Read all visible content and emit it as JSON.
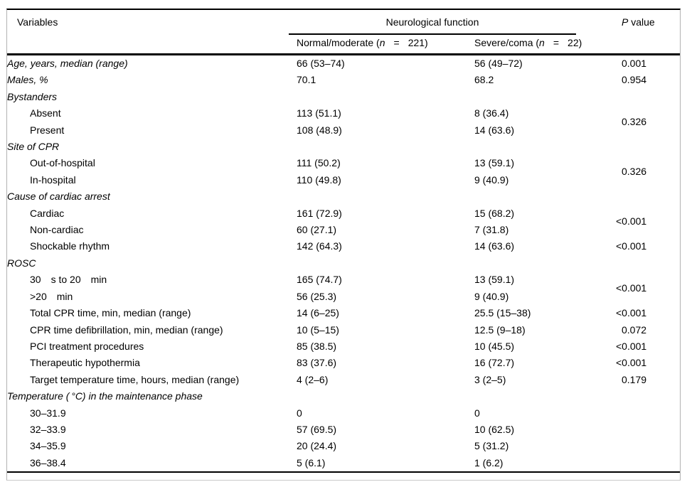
{
  "header": {
    "variables": "Variables",
    "group": "Neurological function",
    "p_italic": "P",
    "p_rest": " value",
    "sub1": {
      "prefix": "Normal/moderate (",
      "n": "n",
      "eq": "=",
      "count": "221)"
    },
    "sub2": {
      "prefix": "Severe/coma (",
      "n": "n",
      "eq": "=",
      "count": "22)"
    }
  },
  "colors": {
    "text": "#000000",
    "rule": "#000000",
    "frame_border": "#b3b3b3",
    "background": "#ffffff"
  },
  "rows": [
    {
      "label": "Age, years, median (range)",
      "italic": true,
      "indent": false,
      "v1": "66 (53–74)",
      "v2": "56 (49–72)",
      "p": "0.001",
      "pspan": 1
    },
    {
      "label": "Males, %",
      "italic": true,
      "indent": false,
      "v1": "70.1",
      "v2": "68.2",
      "p": "0.954",
      "pspan": 1
    },
    {
      "label": "Bystanders",
      "italic": true,
      "indent": false,
      "v1": "",
      "v2": "",
      "p": "",
      "pspan": 1
    },
    {
      "label": "Absent",
      "italic": false,
      "indent": true,
      "v1": "113 (51.1)",
      "v2": "8 (36.4)",
      "p": "0.326",
      "pspan": 2
    },
    {
      "label": "Present",
      "italic": false,
      "indent": true,
      "v1": "108 (48.9)",
      "v2": "14 (63.6)",
      "p": null,
      "pspan": 0
    },
    {
      "label": "Site of CPR",
      "italic": true,
      "indent": false,
      "v1": "",
      "v2": "",
      "p": "",
      "pspan": 1
    },
    {
      "label": "Out-of-hospital",
      "italic": false,
      "indent": true,
      "v1": "111 (50.2)",
      "v2": "13 (59.1)",
      "p": "0.326",
      "pspan": 2
    },
    {
      "label": "In-hospital",
      "italic": false,
      "indent": true,
      "v1": "110 (49.8)",
      "v2": "9 (40.9)",
      "p": null,
      "pspan": 0
    },
    {
      "label": "Cause of cardiac arrest",
      "italic": true,
      "indent": false,
      "v1": "",
      "v2": "",
      "p": "",
      "pspan": 1
    },
    {
      "label": "Cardiac",
      "italic": false,
      "indent": true,
      "v1": "161 (72.9)",
      "v2": "15 (68.2)",
      "p": "<0.001",
      "pspan": 2
    },
    {
      "label": "Non-cardiac",
      "italic": false,
      "indent": true,
      "v1": "60 (27.1)",
      "v2": "7 (31.8)",
      "p": null,
      "pspan": 0
    },
    {
      "label": "Shockable rhythm",
      "italic": false,
      "indent": true,
      "v1": "142 (64.3)",
      "v2": "14 (63.6)",
      "p": "<0.001",
      "pspan": 1
    },
    {
      "label": "ROSC",
      "italic": true,
      "indent": false,
      "v1": "",
      "v2": "",
      "p": "",
      "pspan": 1
    },
    {
      "label": "30 s to 20 min",
      "italic": false,
      "indent": true,
      "v1": "165 (74.7)",
      "v2": "13 (59.1)",
      "p": "<0.001",
      "pspan": 2
    },
    {
      "label": ">20 min",
      "italic": false,
      "indent": true,
      "v1": "56 (25.3)",
      "v2": "9 (40.9)",
      "p": null,
      "pspan": 0
    },
    {
      "label": "Total CPR time, min, median (range)",
      "italic": false,
      "indent": true,
      "v1": "14 (6–25)",
      "v2": "25.5 (15–38)",
      "p": "<0.001",
      "pspan": 1
    },
    {
      "label": "CPR time defibrillation, min, median (range)",
      "italic": false,
      "indent": true,
      "v1": "10 (5–15)",
      "v2": "12.5 (9–18)",
      "p": "0.072",
      "pspan": 1
    },
    {
      "label": "PCI treatment procedures",
      "italic": false,
      "indent": true,
      "v1": "85 (38.5)",
      "v2": "10 (45.5)",
      "p": "<0.001",
      "pspan": 1
    },
    {
      "label": "Therapeutic hypothermia",
      "italic": false,
      "indent": true,
      "v1": "83 (37.6)",
      "v2": "16 (72.7)",
      "p": "<0.001",
      "pspan": 1
    },
    {
      "label": "Target temperature time, hours, median (range)",
      "italic": false,
      "indent": true,
      "v1": "4 (2–6)",
      "v2": "3 (2–5)",
      "p": "0.179",
      "pspan": 1
    },
    {
      "label": "Temperature ( °C) in the maintenance phase",
      "italic": true,
      "indent": false,
      "v1": "",
      "v2": "",
      "p": "",
      "pspan": 1
    },
    {
      "label": "30–31.9",
      "italic": false,
      "indent": true,
      "v1": "0",
      "v2": "0",
      "p": "",
      "pspan": 1
    },
    {
      "label": "32–33.9",
      "italic": false,
      "indent": true,
      "v1": "57 (69.5)",
      "v2": "10 (62.5)",
      "p": "",
      "pspan": 1
    },
    {
      "label": "34–35.9",
      "italic": false,
      "indent": true,
      "v1": "20 (24.4)",
      "v2": "5 (31.2)",
      "p": "",
      "pspan": 1
    },
    {
      "label": "36–38.4",
      "italic": false,
      "indent": true,
      "v1": "5 (6.1)",
      "v2": "1 (6.2)",
      "p": "",
      "pspan": 1
    }
  ]
}
